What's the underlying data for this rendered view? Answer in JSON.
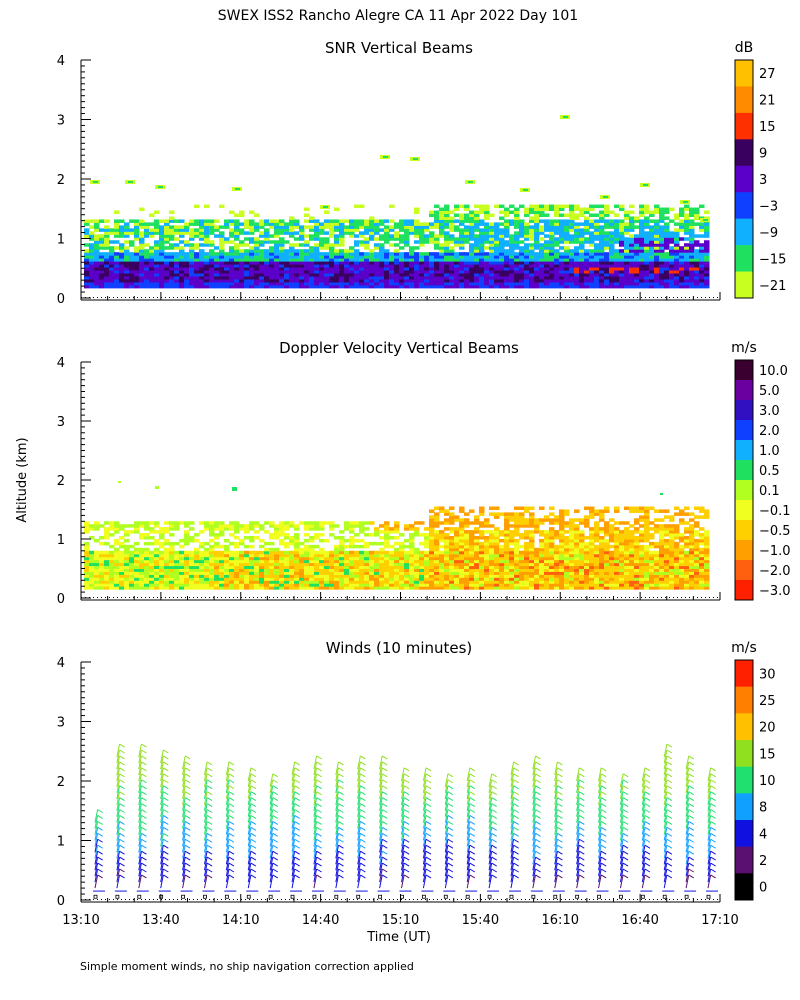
{
  "figure": {
    "title": "SWEX ISS2 Rancho Alegre CA  11 Apr 2022 Day 101",
    "ylabel": "Altitude (km)",
    "xlabel": "Time (UT)",
    "footnote": "Simple moment winds, no ship navigation correction applied"
  },
  "chart_data": [
    {
      "type": "heatmap",
      "title": "SNR Vertical Beams",
      "xlabel": "Time (UT)",
      "ylabel": "Altitude (km)",
      "x_ticks": [
        "13:10",
        "13:40",
        "14:10",
        "14:40",
        "15:10",
        "15:40",
        "16:10",
        "16:40",
        "17:10"
      ],
      "y_ticks": [
        "0",
        "1",
        "2",
        "3",
        "4"
      ],
      "ylim": [
        0,
        4
      ],
      "colorbar": {
        "unit": "dB",
        "labels": [
          "27",
          "21",
          "15",
          "9",
          "3",
          "−3",
          "−9",
          "−15",
          "−21"
        ],
        "colors": [
          "#ffc000",
          "#ff8c00",
          "#ff3000",
          "#3a0060",
          "#5a00c8",
          "#1040ff",
          "#10b0ff",
          "#20e060",
          "#c8ff20"
        ]
      }
    },
    {
      "type": "heatmap",
      "title": "Doppler Velocity Vertical Beams",
      "xlabel": "Time (UT)",
      "ylabel": "Altitude (km)",
      "x_ticks": [
        "13:10",
        "13:40",
        "14:10",
        "14:40",
        "15:10",
        "15:40",
        "16:10",
        "16:40",
        "17:10"
      ],
      "y_ticks": [
        "0",
        "1",
        "2",
        "3",
        "4"
      ],
      "ylim": [
        0,
        4
      ],
      "colorbar": {
        "unit": "m/s",
        "labels": [
          "10.0",
          "5.0",
          "3.0",
          "2.0",
          "1.0",
          "0.5",
          "0.1",
          "−0.1",
          "−0.5",
          "−1.0",
          "−2.0",
          "−3.0"
        ],
        "colors": [
          "#3a0030",
          "#6a00a0",
          "#3010c0",
          "#1040ff",
          "#10b0ff",
          "#20e060",
          "#b0ff20",
          "#f0ff20",
          "#ffd000",
          "#ffa000",
          "#ff6010",
          "#ff2000"
        ]
      }
    },
    {
      "type": "scatter",
      "title": "Winds (10 minutes)",
      "xlabel": "Time (UT)",
      "ylabel": "Altitude (km)",
      "x_ticks": [
        "13:10",
        "13:40",
        "14:10",
        "14:40",
        "15:10",
        "15:40",
        "16:10",
        "16:40",
        "17:10"
      ],
      "y_ticks": [
        "0",
        "1",
        "2",
        "3",
        "4"
      ],
      "ylim": [
        0,
        4
      ],
      "wind_top_km": [
        1.3,
        2.45,
        2.4,
        2.35,
        2.2,
        2.15,
        2.15,
        2.0,
        1.95,
        2.1,
        2.2,
        2.15,
        2.2,
        2.2,
        2.0,
        2.0,
        1.95,
        2.0,
        1.9,
        2.1,
        2.2,
        2.1,
        2.0,
        2.0,
        1.95,
        2.05,
        2.45,
        2.2,
        2.0
      ],
      "colorbar": {
        "unit": "m/s",
        "labels": [
          "30",
          "25",
          "20",
          "15",
          "10",
          "8",
          "4",
          "2",
          "0"
        ],
        "colors": [
          "#ff2000",
          "#ff8000",
          "#ffc000",
          "#90e020",
          "#20e070",
          "#10a0ff",
          "#1010e0",
          "#5a1070",
          "#000000"
        ]
      }
    }
  ]
}
